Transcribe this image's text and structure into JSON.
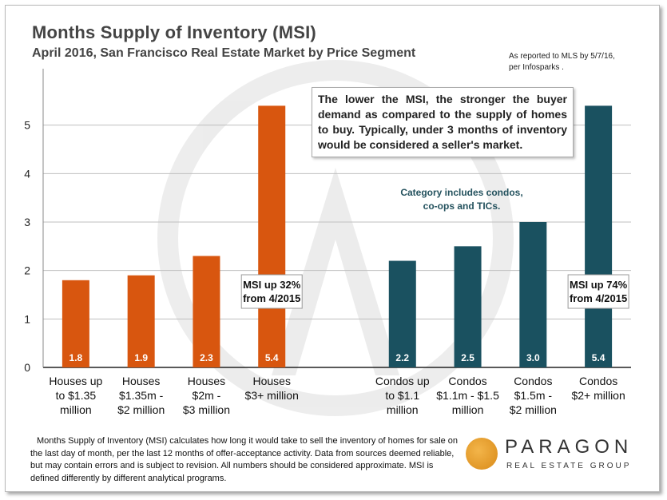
{
  "header": {
    "title": "Months Supply of Inventory (MSI)",
    "subtitle": "April 2016, San Francisco Real Estate Market by Price Segment",
    "source_note": "As reported to MLS by 5/7/16, per Infosparks ."
  },
  "annotation_box": "The lower the MSI, the stronger the buyer demand as compared to the supply of homes to buy.  Typically, under 3 months of inventory would be considered a seller's market.",
  "category_note": "Category includes condos, co-ops and TICs.",
  "footnote": "Months Supply of Inventory (MSI) calculates how long it would take to sell the inventory of homes for sale on the last day of month, per the last 12 months of offer-acceptance activity. Data from sources deemed reliable, but may contain errors and is subject to revision. All numbers should be considered approximate. MSI is defined differently by different analytical programs.",
  "logo": {
    "name": "PARAGON",
    "tagline": "REAL ESTATE GROUP"
  },
  "colors": {
    "houses": "#d8560f",
    "condos": "#1a5160",
    "grid": "#bfbfbf"
  },
  "chart_data": {
    "type": "bar",
    "categories": [
      "Houses up to $1.35 million",
      "Houses $1.35m - $2 million",
      "Houses $2m - $3 million",
      "Houses $3+ million",
      "",
      "Condos up to $1.1 million",
      "Condos $1.1m - $1.5 million",
      "Condos $1.5m - $2 million",
      "Condos $2+ million"
    ],
    "category_lines": [
      [
        "Houses up",
        "to $1.35",
        "million"
      ],
      [
        "Houses",
        "$1.35m -",
        "$2 million"
      ],
      [
        "Houses",
        "$2m -",
        "$3 million"
      ],
      [
        "Houses",
        "$3+ million"
      ],
      [],
      [
        "Condos up",
        "to $1.1",
        "million"
      ],
      [
        "Condos",
        "$1.1m - $1.5",
        "million"
      ],
      [
        "Condos",
        "$1.5m -",
        "$2 million"
      ],
      [
        "Condos",
        "$2+ million"
      ]
    ],
    "values": [
      1.8,
      1.9,
      2.3,
      5.4,
      null,
      2.2,
      2.5,
      3.0,
      5.4
    ],
    "value_labels": [
      "1.8",
      "1.9",
      "2.3",
      "5.4",
      "",
      "2.2",
      "2.5",
      "3.0",
      "5.4"
    ],
    "groups": [
      "houses",
      "houses",
      "houses",
      "houses",
      "",
      "condos",
      "condos",
      "condos",
      "condos"
    ],
    "ylim": [
      0,
      6
    ],
    "yticks": [
      0,
      1,
      2,
      3,
      4,
      5
    ],
    "grid": true,
    "callouts": [
      {
        "lines": [
          "MSI up 32%",
          "from 4/2015"
        ],
        "category_index": 3
      },
      {
        "lines": [
          "MSI up 74%",
          "from 4/2015"
        ],
        "category_index": 8
      }
    ]
  }
}
